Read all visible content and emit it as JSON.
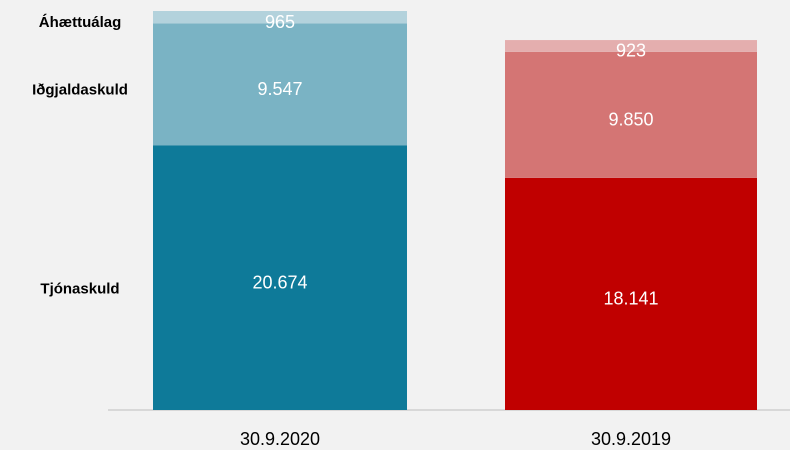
{
  "chart_data": {
    "type": "stacked-bar",
    "categories": [
      "30.9.2020",
      "30.9.2019"
    ],
    "series": [
      {
        "name": "Tjónaskuld",
        "colors": [
          "#0e7a99",
          "#c00000"
        ],
        "values": [
          20674,
          18141
        ],
        "value_labels": [
          "20.674",
          "18.141"
        ]
      },
      {
        "name": "Iðgjaldaskuld",
        "colors": [
          "#7ab3c4",
          "#d47574"
        ],
        "values": [
          9547,
          9850
        ],
        "value_labels": [
          "9.547",
          "9.850"
        ]
      },
      {
        "name": "Áhættuálag",
        "colors": [
          "#b3d2dc",
          "#e4aeae"
        ],
        "values": [
          965,
          923
        ],
        "value_labels": [
          "965",
          "923"
        ]
      }
    ]
  }
}
